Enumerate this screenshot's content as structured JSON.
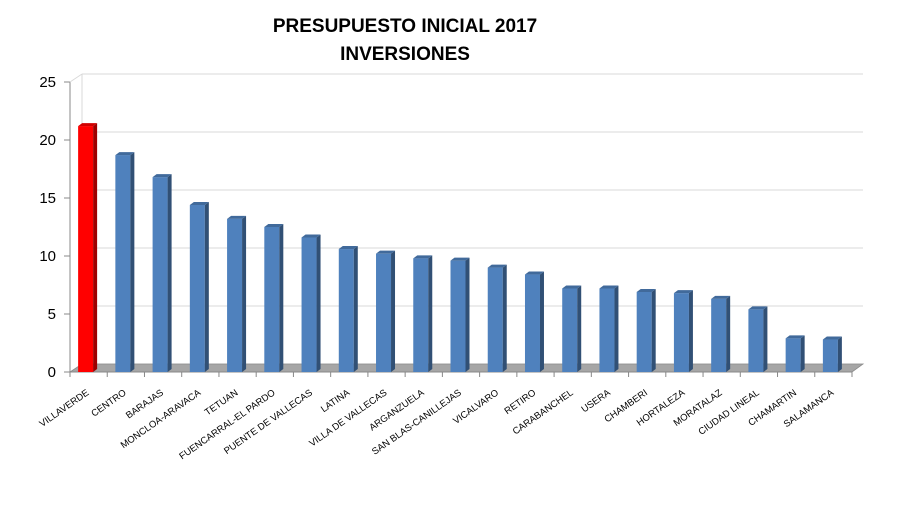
{
  "chart_data": {
    "type": "bar",
    "title": "PRESUPUESTO INICIAL 2017",
    "subtitle": "INVERSIONES",
    "xlabel": "",
    "ylabel": "",
    "ylim": [
      0,
      25
    ],
    "yticks": [
      "0",
      "5",
      "10",
      "15",
      "20",
      "25"
    ],
    "grid": true,
    "categories": [
      "VILLAVERDE",
      "CENTRO",
      "BARAJAS",
      "MONCLOA-ARAVACA",
      "TETUAN",
      "FUENCARRAL-EL PARDO",
      "PUENTE DE VALLECAS",
      "LATINA",
      "VILLA DE VALLECAS",
      "ARGANZUELA",
      "SAN BLAS-CANILLEJAS",
      "VICALVARO",
      "RETIRO",
      "CARABANCHEL",
      "USERA",
      "CHAMBERI",
      "HORTALEZA",
      "MORATALAZ",
      "CIUDAD LINEAL",
      "CHAMARTIN",
      "SALAMANCA"
    ],
    "values": [
      21.2,
      18.7,
      16.8,
      14.4,
      13.2,
      12.5,
      11.6,
      10.6,
      10.2,
      9.8,
      9.6,
      9.0,
      8.4,
      7.2,
      7.2,
      6.9,
      6.8,
      6.3,
      5.4,
      2.9,
      2.8
    ],
    "colors": {
      "default": "#4F81BD",
      "highlight": "#FF0000",
      "highlight_index": 0
    }
  }
}
